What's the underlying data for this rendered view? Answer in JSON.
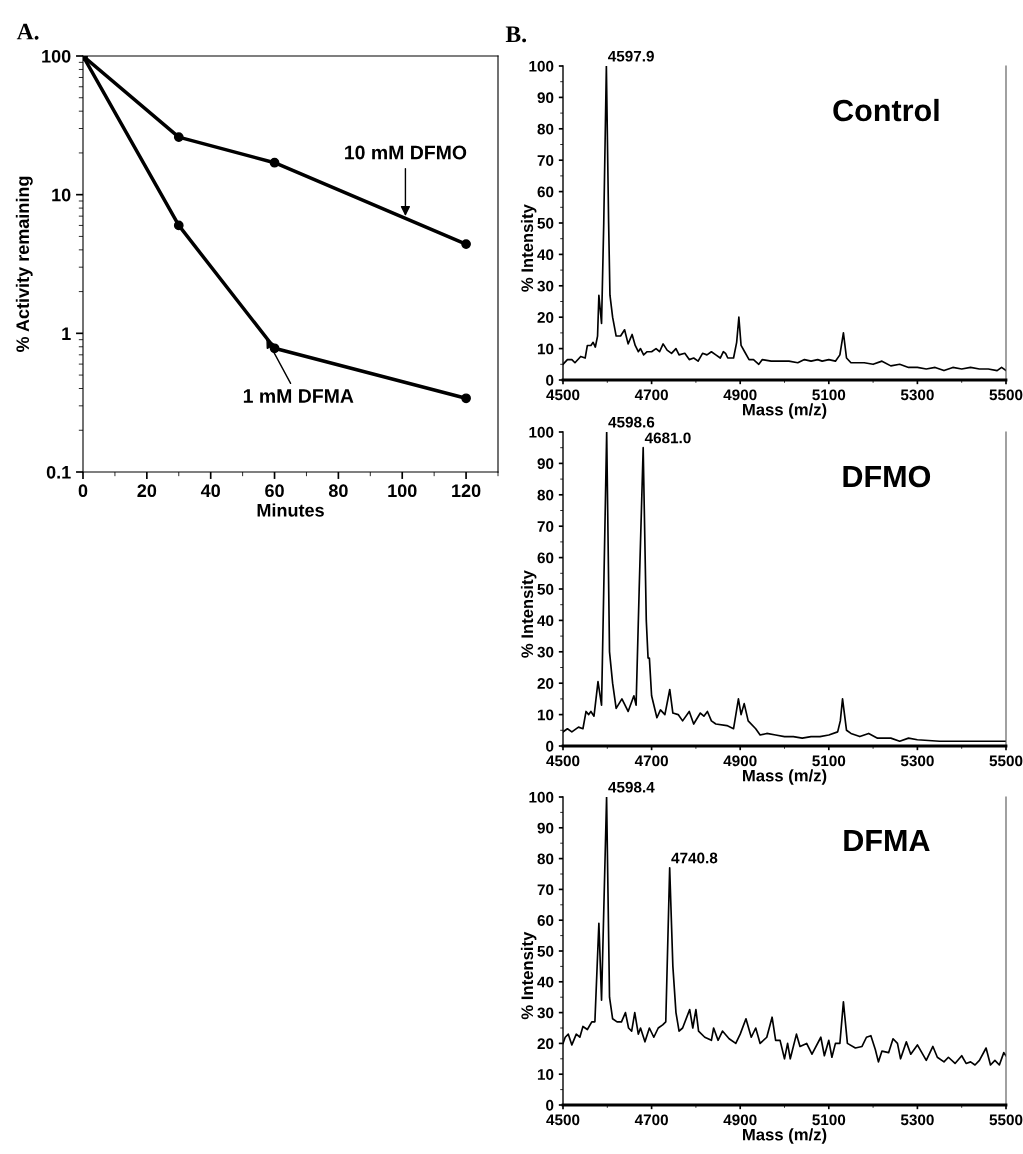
{
  "chart_data": [
    {
      "type": "line",
      "title": "A.",
      "xlabel": "Minutes",
      "ylabel": "% Activity remaining",
      "log": "y",
      "xlim": [
        0,
        130
      ],
      "xticks": [
        0,
        20,
        40,
        60,
        80,
        100,
        120
      ],
      "ylim": [
        0.1,
        100
      ],
      "yticks": [
        0.1,
        1,
        10,
        100
      ],
      "marker": "circle",
      "line_style": "solid",
      "series": [
        {
          "color": "#000000",
          "x": [
            0,
            30,
            60,
            120
          ],
          "values": [
            100,
            26,
            17,
            4.4
          ]
        },
        {
          "color": "#000000",
          "x": [
            0,
            30,
            60,
            120
          ],
          "values": [
            100,
            6,
            0.78,
            0.34
          ]
        }
      ],
      "annotations": [
        {
          "text": "10 mM DFMO",
          "x": 101,
          "y": 6.7
        },
        {
          "text": "1 mM DFMA",
          "x": 57,
          "y": 0.96
        }
      ]
    },
    {
      "type": "line",
      "title": "B.",
      "xlabel": "Mass (m/z)",
      "ylabel": "% Intensity",
      "xlim": [
        4500,
        5500
      ],
      "xticks": [
        4500,
        4700,
        4900,
        5100,
        5300,
        5500
      ],
      "ylim": [
        0,
        100
      ],
      "yticks": [
        0,
        10,
        20,
        30,
        40,
        50,
        60,
        70,
        80,
        90,
        100
      ],
      "marker": "none",
      "line_style": "solid",
      "series": [
        {
          "color": "#000000",
          "x": [
            4500,
            4510,
            4520,
            4527,
            4540,
            4550,
            4555,
            4563,
            4568,
            4573,
            4578,
            4581,
            4587,
            4592,
            4597.9,
            4603,
            4606,
            4612,
            4620,
            4630,
            4639,
            4647,
            4656,
            4663,
            4670,
            4675,
            4682,
            4690,
            4700,
            4710,
            4718,
            4726,
            4735,
            4745,
            4755,
            4762,
            4775,
            4785,
            4795,
            4805,
            4815,
            4825,
            4835,
            4845,
            4855,
            4862,
            4867,
            4872,
            4878,
            4885,
            4892,
            4897,
            4902,
            4910,
            4920,
            4930,
            4942,
            4950,
            4970,
            4990,
            5010,
            5030,
            5045,
            5060,
            5075,
            5085,
            5100,
            5115,
            5125,
            5133,
            5140,
            5150,
            5160,
            5180,
            5200,
            5220,
            5240,
            5260,
            5280,
            5300,
            5320,
            5340,
            5360,
            5380,
            5400,
            5420,
            5440,
            5460,
            5480,
            5490,
            5500
          ],
          "values": [
            5,
            6.5,
            6.5,
            5.5,
            7.5,
            7,
            11,
            11,
            12,
            10.5,
            14,
            27,
            18,
            50,
            100,
            50,
            27,
            20,
            14,
            14,
            16,
            11.5,
            14.5,
            11,
            9,
            10,
            8,
            9,
            9,
            10,
            9,
            11.5,
            9.5,
            8.5,
            10,
            8,
            8.5,
            6.5,
            7,
            6,
            8.5,
            8,
            9,
            8,
            7,
            9,
            8.5,
            7,
            7,
            7,
            12,
            20,
            11,
            9,
            6.5,
            6.5,
            5,
            6.5,
            6,
            6,
            6,
            5.5,
            6.5,
            6,
            6.5,
            6,
            6.5,
            6,
            8,
            15,
            7,
            5.5,
            5.5,
            5.5,
            5,
            6,
            4.5,
            5,
            4,
            4,
            3.5,
            4,
            3,
            4,
            3.5,
            4,
            3.5,
            3.5,
            3,
            4,
            3
          ]
        }
      ],
      "annotations": [
        "Control",
        {
          "text": "4597.9",
          "x": 4597.9,
          "y": 100
        }
      ]
    },
    {
      "type": "line",
      "xlabel": "Mass (m/z)",
      "ylabel": "% Intensity",
      "xlim": [
        4500,
        5500
      ],
      "xticks": [
        4500,
        4700,
        4900,
        5100,
        5300,
        5500
      ],
      "ylim": [
        0,
        100
      ],
      "yticks": [
        0,
        10,
        20,
        30,
        40,
        50,
        60,
        70,
        80,
        90,
        100
      ],
      "marker": "none",
      "line_style": "solid",
      "series": [
        {
          "color": "#000000",
          "x": [
            4500,
            4510,
            4520,
            4535,
            4545,
            4552,
            4558,
            4563,
            4570,
            4579,
            4587,
            4592,
            4598.6,
            4605,
            4612,
            4620,
            4633,
            4647,
            4660,
            4665,
            4672,
            4681,
            4688,
            4692,
            4695,
            4700,
            4712,
            4720,
            4730,
            4741,
            4748,
            4760,
            4770,
            4785,
            4795,
            4810,
            4818,
            4826,
            4835,
            4845,
            4870,
            4885,
            4896,
            4902,
            4909,
            4918,
            4935,
            4945,
            4960,
            4980,
            5000,
            5020,
            5040,
            5060,
            5080,
            5100,
            5120,
            5126,
            5131,
            5140,
            5150,
            5170,
            5190,
            5210,
            5240,
            5260,
            5280,
            5300,
            5350,
            5400,
            5450,
            5500
          ],
          "values": [
            4.5,
            5.5,
            4.5,
            6,
            5.5,
            11,
            10,
            11,
            9.5,
            20.5,
            13,
            50,
            100,
            30,
            20,
            12,
            15,
            11,
            16,
            13,
            50,
            95,
            40,
            28,
            28,
            16,
            9,
            11.5,
            10,
            18,
            10.5,
            10,
            8,
            11,
            7,
            10.5,
            9.5,
            11,
            8,
            7,
            6.5,
            5.5,
            15,
            10,
            13.5,
            8,
            5.5,
            3.5,
            4,
            3.5,
            3,
            3,
            2.5,
            3,
            3,
            3.5,
            4.5,
            8,
            15,
            5,
            4,
            3,
            4,
            2.5,
            2.5,
            1.5,
            2.5,
            2,
            1.5,
            1.5,
            1.5,
            1.5
          ]
        }
      ],
      "annotations": [
        "DFMO",
        {
          "text": "4598.6",
          "x": 4598.6,
          "y": 100
        },
        {
          "text": "4681.0",
          "x": 4681.0,
          "y": 95
        }
      ]
    },
    {
      "type": "line",
      "xlabel": "Mass (m/z)",
      "ylabel": "% Intensity",
      "xlim": [
        4500,
        5500
      ],
      "xticks": [
        4500,
        4700,
        4900,
        5100,
        5300,
        5500
      ],
      "ylim": [
        0,
        100
      ],
      "yticks": [
        0,
        10,
        20,
        30,
        40,
        50,
        60,
        70,
        80,
        90,
        100
      ],
      "marker": "none",
      "line_style": "solid",
      "series": [
        {
          "color": "#000000",
          "x": [
            4500,
            4505,
            4512,
            4520,
            4530,
            4538,
            4545,
            4555,
            4565,
            4572,
            4581,
            4587,
            4598.4,
            4605,
            4612,
            4622,
            4632,
            4641,
            4648,
            4655,
            4662,
            4670,
            4675,
            4685,
            4695,
            4705,
            4715,
            4725,
            4732,
            4740.8,
            4748,
            4755,
            4762,
            4770,
            4786,
            4793,
            4800,
            4806,
            4820,
            4835,
            4840,
            4850,
            4860,
            4875,
            4890,
            4900,
            4913,
            4925,
            4935,
            4945,
            4960,
            4972,
            4980,
            4990,
            5000,
            5007,
            5013,
            5027,
            5035,
            5050,
            5062,
            5082,
            5090,
            5100,
            5107,
            5115,
            5125,
            5133,
            5142,
            5160,
            5175,
            5185,
            5195,
            5205,
            5212,
            5220,
            5235,
            5245,
            5255,
            5262,
            5275,
            5285,
            5300,
            5310,
            5320,
            5335,
            5345,
            5360,
            5370,
            5385,
            5400,
            5410,
            5420,
            5430,
            5440,
            5455,
            5465,
            5475,
            5485,
            5495,
            5500
          ],
          "values": [
            20,
            22,
            23,
            19.5,
            23,
            22,
            25.5,
            24.5,
            27,
            27,
            59,
            34,
            100,
            35,
            28,
            27,
            27,
            30,
            25,
            24,
            30,
            23,
            25,
            20.5,
            25,
            22,
            25,
            26,
            27,
            77,
            45,
            30,
            24,
            25,
            31,
            25,
            31,
            24,
            22,
            21,
            25,
            21,
            24,
            21.5,
            20,
            23,
            28,
            22,
            25,
            20,
            22,
            28.5,
            21,
            21,
            15,
            20,
            15,
            23,
            19,
            20,
            16.5,
            22,
            16,
            21,
            15.5,
            20,
            20,
            33.5,
            20,
            18.5,
            19,
            22,
            22.5,
            18,
            14,
            17.5,
            17,
            21.5,
            20,
            15,
            20.5,
            16.5,
            19.5,
            17,
            14.5,
            19,
            15.5,
            14,
            15.5,
            13.5,
            16,
            13.5,
            14,
            13,
            14.5,
            18.5,
            13,
            14.5,
            13,
            17,
            16
          ]
        }
      ],
      "annotations": [
        "DFMA",
        {
          "text": "4598.4",
          "x": 4598.4,
          "y": 100
        },
        {
          "text": "4740.8",
          "x": 4740.8,
          "y": 77
        }
      ]
    }
  ]
}
